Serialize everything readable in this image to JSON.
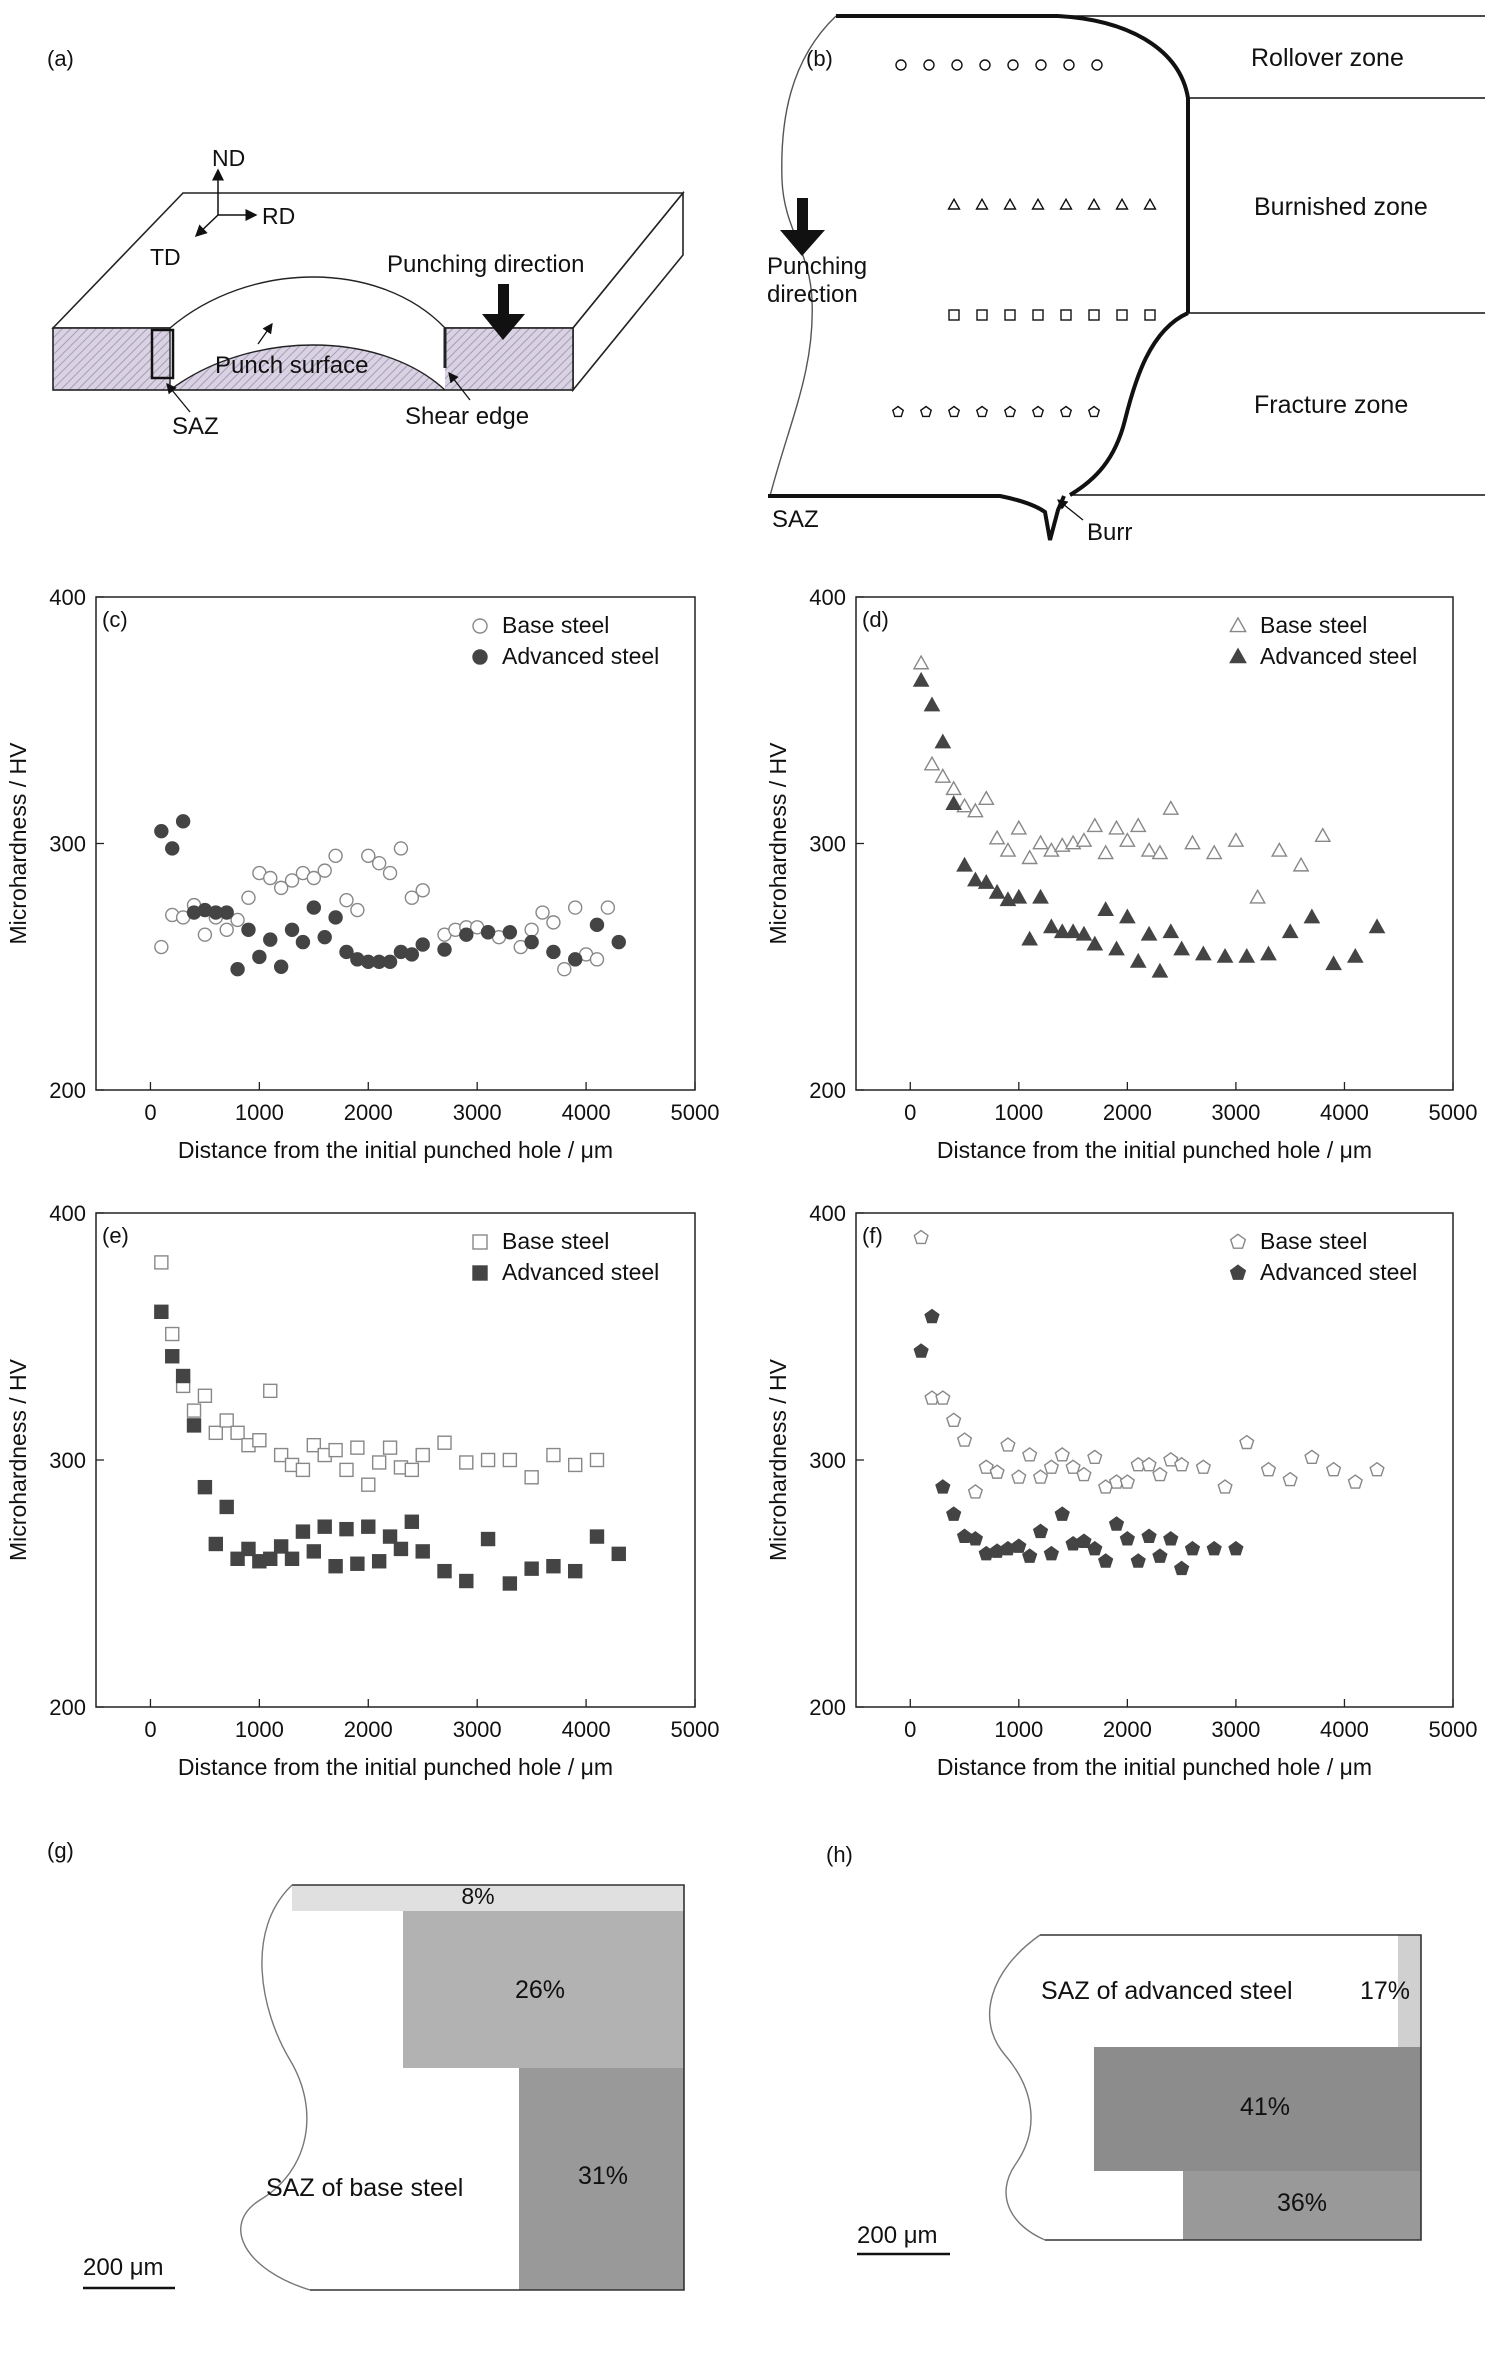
{
  "panels": {
    "a": {
      "letter": "(a)",
      "axes": {
        "nd": "ND",
        "rd": "RD",
        "td": "TD"
      },
      "labels": {
        "punching_direction": "Punching direction",
        "punch_surface": "Punch surface",
        "saz": "SAZ",
        "shear_edge": "Shear edge"
      }
    },
    "b": {
      "letter": "(b)",
      "zones": {
        "rollover": "Rollover zone",
        "burnished": "Burnished zone",
        "fracture": "Fracture zone"
      },
      "punching_line1": "Punching",
      "punching_line2": "direction",
      "saz": "SAZ",
      "burr": "Burr"
    },
    "g": {
      "letter": "(g)",
      "label": "SAZ of base steel",
      "pct_top": "8%",
      "pct_mid": "26%",
      "pct_bottom": "31%",
      "scalebar": "200 μm"
    },
    "h": {
      "letter": "(h)",
      "label": "SAZ of advanced steel",
      "pct_top": "17%",
      "pct_mid": "41%",
      "pct_bottom": "36%",
      "scalebar": "200 μm"
    }
  },
  "colors": {
    "base_marker": "#888888",
    "advanced_marker": "#444444",
    "fill_light": "#e0e0e0",
    "fill_mid": "#b2b2b2",
    "fill_dark": "#999999"
  },
  "chart_data": [
    {
      "id": "c",
      "letter": "(c)",
      "type": "scatter",
      "marker": "circle",
      "xlabel": "Distance from the initial punched hole / μm",
      "ylabel": "Microhardness / HV",
      "xlim": [
        -500,
        5000
      ],
      "ylim": [
        200,
        400
      ],
      "xticks": [
        0,
        1000,
        2000,
        3000,
        4000,
        5000
      ],
      "yticks": [
        200,
        300,
        400
      ],
      "legend_position": "top-right",
      "series": [
        {
          "name": "Base steel",
          "style": "open",
          "x": [
            100,
            200,
            300,
            400,
            500,
            600,
            700,
            800,
            900,
            1000,
            1100,
            1200,
            1300,
            1400,
            1500,
            1600,
            1700,
            1800,
            1900,
            2000,
            2100,
            2200,
            2300,
            2400,
            2500,
            2700,
            2800,
            2900,
            3000,
            3100,
            3200,
            3400,
            3500,
            3600,
            3700,
            3800,
            3900,
            4000,
            4100,
            4200
          ],
          "y": [
            258,
            271,
            270,
            275,
            263,
            270,
            265,
            269,
            278,
            288,
            286,
            282,
            285,
            288,
            286,
            289,
            295,
            277,
            273,
            295,
            292,
            288,
            298,
            278,
            281,
            263,
            265,
            266,
            266,
            264,
            262,
            258,
            265,
            272,
            268,
            249,
            274,
            255,
            253,
            274
          ]
        },
        {
          "name": "Advanced steel",
          "style": "filled",
          "x": [
            100,
            200,
            300,
            400,
            500,
            600,
            700,
            800,
            900,
            1000,
            1100,
            1200,
            1300,
            1400,
            1500,
            1600,
            1700,
            1800,
            1900,
            2000,
            2100,
            2200,
            2300,
            2400,
            2500,
            2700,
            2900,
            3100,
            3300,
            3500,
            3700,
            3900,
            4100,
            4300
          ],
          "y": [
            305,
            298,
            309,
            272,
            273,
            272,
            272,
            249,
            265,
            254,
            261,
            250,
            265,
            260,
            274,
            262,
            270,
            256,
            253,
            252,
            252,
            252,
            256,
            255,
            259,
            257,
            263,
            264,
            264,
            260,
            256,
            253,
            267,
            260
          ]
        }
      ]
    },
    {
      "id": "d",
      "letter": "(d)",
      "type": "scatter",
      "marker": "triangle",
      "xlabel": "Distance from the initial punched hole / μm",
      "ylabel": "Microhardness / HV",
      "xlim": [
        -500,
        5000
      ],
      "ylim": [
        200,
        400
      ],
      "xticks": [
        0,
        1000,
        2000,
        3000,
        4000,
        5000
      ],
      "yticks": [
        200,
        300,
        400
      ],
      "legend_position": "top-right",
      "series": [
        {
          "name": "Base steel",
          "style": "open",
          "x": [
            100,
            200,
            300,
            400,
            500,
            600,
            700,
            800,
            900,
            1000,
            1100,
            1200,
            1300,
            1400,
            1500,
            1600,
            1700,
            1800,
            1900,
            2000,
            2100,
            2200,
            2300,
            2400,
            2600,
            2800,
            3000,
            3200,
            3400,
            3600,
            3800
          ],
          "y": [
            373,
            332,
            327,
            322,
            315,
            313,
            318,
            302,
            297,
            306,
            294,
            300,
            297,
            299,
            300,
            301,
            307,
            296,
            306,
            301,
            307,
            297,
            296,
            314,
            300,
            296,
            301,
            278,
            297,
            291,
            303
          ]
        },
        {
          "name": "Advanced steel",
          "style": "filled",
          "x": [
            100,
            200,
            300,
            400,
            500,
            600,
            700,
            800,
            900,
            1000,
            1100,
            1200,
            1300,
            1400,
            1500,
            1600,
            1700,
            1800,
            1900,
            2000,
            2100,
            2200,
            2300,
            2400,
            2500,
            2700,
            2900,
            3100,
            3300,
            3500,
            3700,
            3900,
            4100,
            4300
          ],
          "y": [
            366,
            356,
            341,
            316,
            291,
            285,
            284,
            280,
            277,
            278,
            261,
            278,
            266,
            264,
            264,
            263,
            259,
            273,
            257,
            270,
            252,
            263,
            248,
            264,
            257,
            255,
            254,
            254,
            255,
            264,
            270,
            251,
            254,
            266
          ]
        }
      ]
    },
    {
      "id": "e",
      "letter": "(e)",
      "type": "scatter",
      "marker": "square",
      "xlabel": "Distance from the initial punched hole / μm",
      "ylabel": "Microhardness / HV",
      "xlim": [
        -500,
        5000
      ],
      "ylim": [
        200,
        400
      ],
      "xticks": [
        0,
        1000,
        2000,
        3000,
        4000,
        5000
      ],
      "yticks": [
        200,
        300,
        400
      ],
      "legend_position": "top-right",
      "series": [
        {
          "name": "Base steel",
          "style": "open",
          "x": [
            100,
            200,
            300,
            400,
            500,
            600,
            700,
            800,
            900,
            1000,
            1100,
            1200,
            1300,
            1400,
            1500,
            1600,
            1700,
            1800,
            1900,
            2000,
            2100,
            2200,
            2300,
            2400,
            2500,
            2700,
            2900,
            3100,
            3300,
            3500,
            3700,
            3900,
            4100
          ],
          "y": [
            380,
            351,
            330,
            320,
            326,
            311,
            316,
            311,
            306,
            308,
            328,
            302,
            298,
            296,
            306,
            302,
            304,
            296,
            305,
            290,
            299,
            305,
            297,
            296,
            302,
            307,
            299,
            300,
            300,
            293,
            302,
            298,
            300
          ]
        },
        {
          "name": "Advanced steel",
          "style": "filled",
          "x": [
            100,
            200,
            300,
            400,
            500,
            600,
            700,
            800,
            900,
            1000,
            1100,
            1200,
            1300,
            1400,
            1500,
            1600,
            1700,
            1800,
            1900,
            2000,
            2100,
            2200,
            2300,
            2400,
            2500,
            2700,
            2900,
            3100,
            3300,
            3500,
            3700,
            3900,
            4100,
            4300
          ],
          "y": [
            360,
            342,
            334,
            314,
            289,
            266,
            281,
            260,
            264,
            259,
            260,
            265,
            260,
            271,
            263,
            273,
            257,
            272,
            258,
            273,
            259,
            269,
            264,
            275,
            263,
            255,
            251,
            268,
            250,
            256,
            257,
            255,
            269,
            262
          ]
        }
      ]
    },
    {
      "id": "f",
      "letter": "(f)",
      "type": "scatter",
      "marker": "pentagon",
      "xlabel": "Distance from the initial punched hole / μm",
      "ylabel": "Microhardness / HV",
      "xlim": [
        -500,
        5000
      ],
      "ylim": [
        200,
        400
      ],
      "xticks": [
        0,
        1000,
        2000,
        3000,
        4000,
        5000
      ],
      "yticks": [
        200,
        300,
        400
      ],
      "legend_position": "top-right",
      "series": [
        {
          "name": "Base steel",
          "style": "open",
          "x": [
            100,
            200,
            300,
            400,
            500,
            600,
            700,
            800,
            900,
            1000,
            1100,
            1200,
            1300,
            1400,
            1500,
            1600,
            1700,
            1800,
            1900,
            2000,
            2100,
            2200,
            2300,
            2400,
            2500,
            2700,
            2900,
            3100,
            3300,
            3500,
            3700,
            3900,
            4100,
            4300
          ],
          "y": [
            390,
            325,
            325,
            316,
            308,
            287,
            297,
            295,
            306,
            293,
            302,
            293,
            297,
            302,
            297,
            294,
            301,
            289,
            291,
            291,
            298,
            298,
            294,
            300,
            298,
            297,
            289,
            307,
            296,
            292,
            301,
            296,
            291,
            296
          ]
        },
        {
          "name": "Advanced steel",
          "style": "filled",
          "x": [
            100,
            200,
            300,
            400,
            500,
            600,
            700,
            800,
            900,
            1000,
            1100,
            1200,
            1300,
            1400,
            1500,
            1600,
            1700,
            1800,
            1900,
            2000,
            2100,
            2200,
            2300,
            2400,
            2500,
            2600,
            2800,
            3000
          ],
          "y": [
            344,
            358,
            289,
            278,
            269,
            268,
            262,
            263,
            264,
            265,
            261,
            271,
            262,
            278,
            266,
            267,
            264,
            259,
            274,
            268,
            259,
            269,
            261,
            268,
            256,
            264,
            264,
            264
          ]
        }
      ]
    }
  ]
}
